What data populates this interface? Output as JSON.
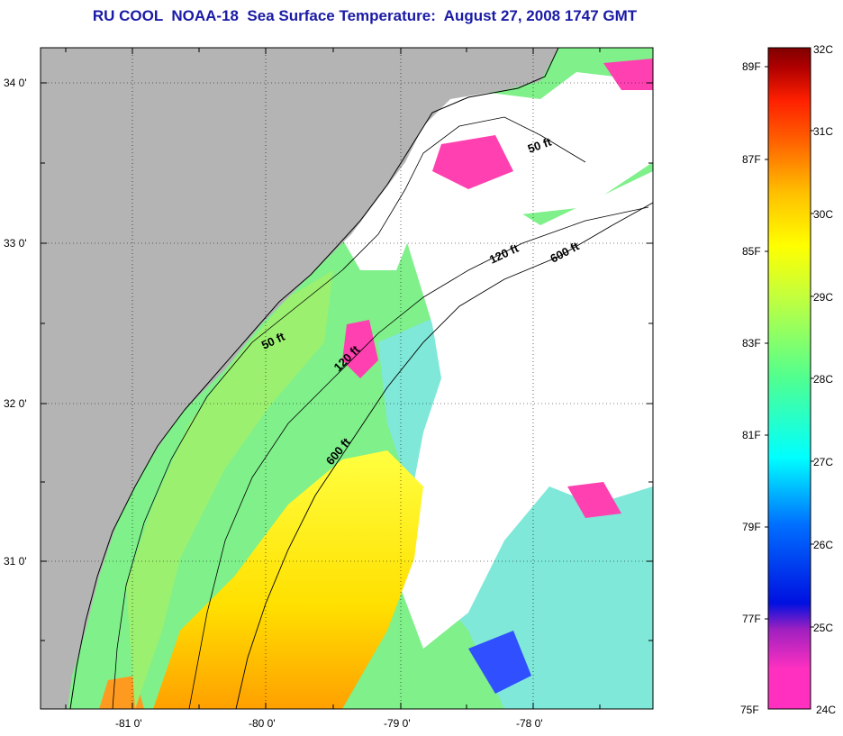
{
  "title": "RU COOL  NOAA-18  Sea Surface Temperature:  August 27, 2008 1747 GMT",
  "map": {
    "lat_ticks": [
      "34 0'",
      "33 0'",
      "32 0'",
      "31 0'"
    ],
    "lon_ticks": [
      "-81 0'",
      "-80 0'",
      "-79 0'",
      "-78 0'"
    ],
    "contours": [
      "50 ft",
      "120 ft",
      "600 ft",
      "50 ft",
      "120 ft",
      "600 ft"
    ],
    "colors": {
      "land": "#b4b4b4",
      "cloud": "#ffffff",
      "coast": "#000000"
    }
  },
  "colorbar": {
    "fahrenheit": [
      "89F",
      "87F",
      "85F",
      "83F",
      "81F",
      "79F",
      "77F",
      "75F"
    ],
    "celsius": [
      "32C",
      "31C",
      "30C",
      "29C",
      "28C",
      "27C",
      "26C",
      "25C",
      "24C"
    ],
    "stops": [
      "#ff30c0",
      "#a020c0",
      "#0010e0",
      "#0070ff",
      "#00ffff",
      "#50ff90",
      "#c0ff40",
      "#ffff00",
      "#ff9000",
      "#ff2000",
      "#b00000",
      "#800000"
    ]
  }
}
